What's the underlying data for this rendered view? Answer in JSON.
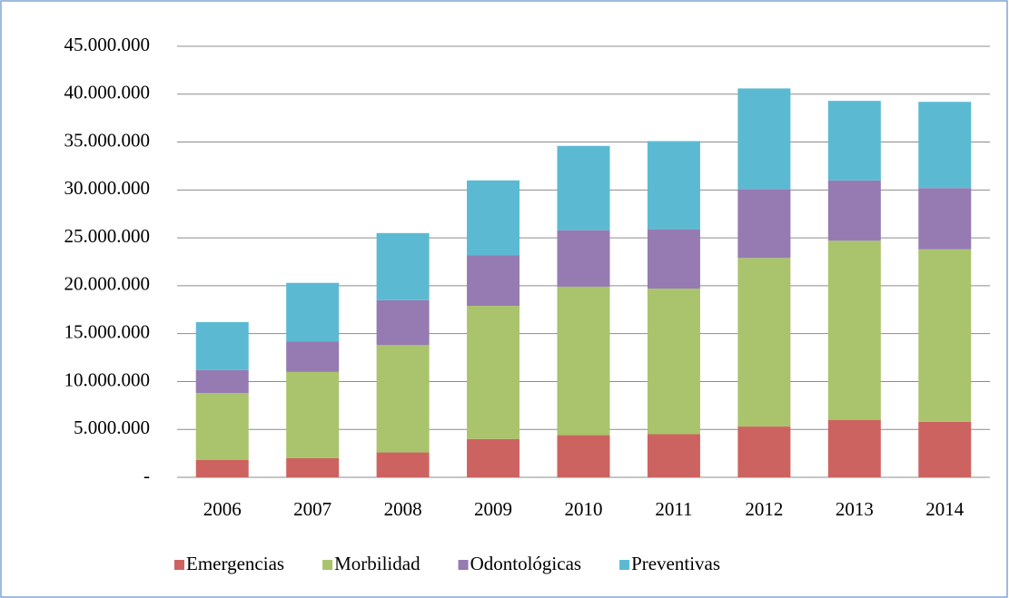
{
  "chart_data": {
    "type": "stacked_bar",
    "categories": [
      "2006",
      "2007",
      "2008",
      "2009",
      "2010",
      "2011",
      "2012",
      "2013",
      "2014"
    ],
    "series": [
      {
        "name": "Emergencias",
        "color": "#cd6360",
        "values": [
          1800000,
          2000000,
          2600000,
          4000000,
          4400000,
          4500000,
          5300000,
          6000000,
          5800000
        ]
      },
      {
        "name": "Morbilidad",
        "color": "#a9c46c",
        "values": [
          7000000,
          9000000,
          11200000,
          13900000,
          15500000,
          15200000,
          17600000,
          18700000,
          18000000
        ]
      },
      {
        "name": "Odontológicas",
        "color": "#957bb1",
        "values": [
          2400000,
          3200000,
          4700000,
          5300000,
          5900000,
          6200000,
          7200000,
          6300000,
          6400000
        ]
      },
      {
        "name": "Preventivas",
        "color": "#5bbad2",
        "values": [
          5000000,
          6100000,
          7000000,
          7800000,
          8800000,
          9200000,
          10500000,
          8300000,
          9000000
        ]
      }
    ],
    "ylim": [
      0,
      45000000
    ],
    "yticks": [
      {
        "value": 0,
        "label": "-"
      },
      {
        "value": 5000000,
        "label": "5.000.000"
      },
      {
        "value": 10000000,
        "label": "10.000.000"
      },
      {
        "value": 15000000,
        "label": "15.000.000"
      },
      {
        "value": 20000000,
        "label": "20.000.000"
      },
      {
        "value": 25000000,
        "label": "25.000.000"
      },
      {
        "value": 30000000,
        "label": "30.000.000"
      },
      {
        "value": 35000000,
        "label": "35.000.000"
      },
      {
        "value": 40000000,
        "label": "40.000.000"
      },
      {
        "value": 45000000,
        "label": "45.000.000"
      }
    ],
    "grid": true,
    "legend": "bottom"
  }
}
